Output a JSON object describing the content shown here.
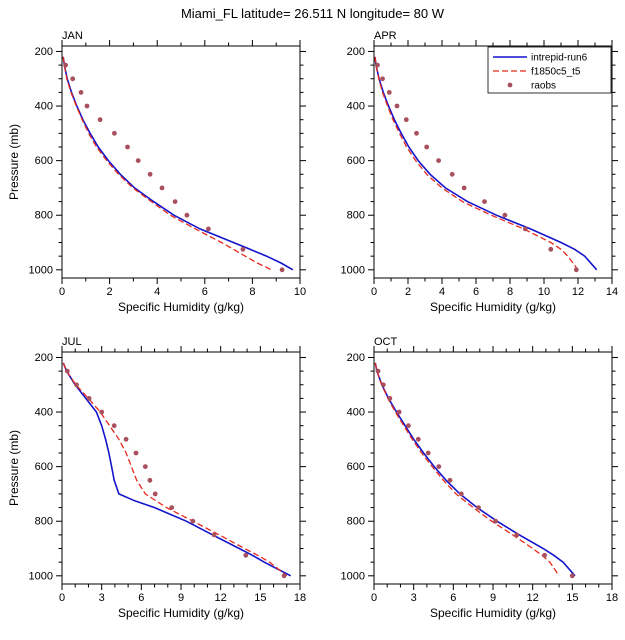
{
  "title": "Miami_FL  latitude= 26.511 N longitude= 80 W",
  "colors": {
    "run6": "#1414cc",
    "f1850": "#e8291c",
    "raobs": "#a8505e"
  },
  "axes": {
    "xlabel": "Specific Humidity (g/kg)",
    "ylabel": "Pressure (mb)",
    "yticks": [
      200,
      400,
      600,
      800,
      1000
    ],
    "ylim": [
      200,
      1000
    ],
    "y_minor_step": 50
  },
  "legend": {
    "entries": [
      {
        "label": "intrepid-run6",
        "color_key": "run6",
        "style": "solid"
      },
      {
        "label": "f1850c5_t5",
        "color_key": "f1850",
        "style": "dashed"
      },
      {
        "label": "raobs",
        "color_key": "raobs",
        "style": "dots"
      }
    ]
  },
  "chart_data": [
    {
      "type": "line",
      "title": "JAN",
      "xlim": [
        0,
        10
      ],
      "xticks": [
        0,
        2,
        4,
        6,
        8,
        10
      ],
      "x_minor_step": 1,
      "show_ylabel": true,
      "show_legend": false,
      "series": [
        {
          "name": "intrepid-run6",
          "style": "solid",
          "color_key": "run6",
          "points": [
            [
              220,
              0.05
            ],
            [
              250,
              0.1
            ],
            [
              300,
              0.22
            ],
            [
              350,
              0.4
            ],
            [
              400,
              0.62
            ],
            [
              450,
              0.88
            ],
            [
              500,
              1.18
            ],
            [
              550,
              1.52
            ],
            [
              600,
              1.95
            ],
            [
              650,
              2.45
            ],
            [
              700,
              3.05
            ],
            [
              750,
              3.85
            ],
            [
              800,
              4.7
            ],
            [
              850,
              5.8
            ],
            [
              900,
              7.2
            ],
            [
              925,
              7.9
            ],
            [
              950,
              8.6
            ],
            [
              975,
              9.2
            ],
            [
              1000,
              9.7
            ]
          ]
        },
        {
          "name": "f1850c5_t5",
          "style": "dashed",
          "color_key": "f1850",
          "points": [
            [
              220,
              0.05
            ],
            [
              250,
              0.1
            ],
            [
              300,
              0.2
            ],
            [
              350,
              0.38
            ],
            [
              400,
              0.6
            ],
            [
              450,
              0.85
            ],
            [
              500,
              1.12
            ],
            [
              550,
              1.45
            ],
            [
              600,
              1.88
            ],
            [
              650,
              2.38
            ],
            [
              700,
              2.98
            ],
            [
              750,
              3.75
            ],
            [
              800,
              4.55
            ],
            [
              850,
              5.6
            ],
            [
              900,
              6.7
            ],
            [
              925,
              7.2
            ],
            [
              950,
              7.7
            ],
            [
              975,
              8.2
            ],
            [
              1000,
              8.8
            ]
          ]
        },
        {
          "name": "raobs",
          "style": "dots",
          "color_key": "raobs",
          "points": [
            [
              250,
              0.15
            ],
            [
              300,
              0.45
            ],
            [
              350,
              0.8
            ],
            [
              400,
              1.05
            ],
            [
              450,
              1.6
            ],
            [
              500,
              2.2
            ],
            [
              550,
              2.75
            ],
            [
              600,
              3.2
            ],
            [
              650,
              3.7
            ],
            [
              700,
              4.2
            ],
            [
              750,
              4.75
            ],
            [
              800,
              5.25
            ],
            [
              850,
              6.15
            ],
            [
              925,
              7.6
            ],
            [
              1000,
              9.25
            ]
          ]
        }
      ]
    },
    {
      "type": "line",
      "title": "APR",
      "xlim": [
        0,
        14
      ],
      "xticks": [
        0,
        2,
        4,
        6,
        8,
        10,
        12,
        14
      ],
      "x_minor_step": 1,
      "show_ylabel": false,
      "show_legend": true,
      "series": [
        {
          "name": "intrepid-run6",
          "style": "solid",
          "color_key": "run6",
          "points": [
            [
              220,
              0.06
            ],
            [
              250,
              0.12
            ],
            [
              300,
              0.3
            ],
            [
              350,
              0.55
            ],
            [
              400,
              0.85
            ],
            [
              450,
              1.2
            ],
            [
              500,
              1.6
            ],
            [
              550,
              2.05
            ],
            [
              600,
              2.6
            ],
            [
              650,
              3.3
            ],
            [
              700,
              4.2
            ],
            [
              750,
              5.5
            ],
            [
              800,
              7.2
            ],
            [
              850,
              9.2
            ],
            [
              900,
              11.0
            ],
            [
              925,
              11.8
            ],
            [
              950,
              12.4
            ],
            [
              1000,
              13.1
            ]
          ]
        },
        {
          "name": "f1850c5_t5",
          "style": "dashed",
          "color_key": "f1850",
          "points": [
            [
              220,
              0.06
            ],
            [
              250,
              0.12
            ],
            [
              300,
              0.28
            ],
            [
              350,
              0.5
            ],
            [
              400,
              0.8
            ],
            [
              450,
              1.12
            ],
            [
              500,
              1.5
            ],
            [
              550,
              1.92
            ],
            [
              600,
              2.45
            ],
            [
              650,
              3.1
            ],
            [
              700,
              4.0
            ],
            [
              750,
              5.2
            ],
            [
              800,
              6.9
            ],
            [
              850,
              8.8
            ],
            [
              900,
              10.4
            ],
            [
              925,
              11.0
            ],
            [
              950,
              11.4
            ],
            [
              1000,
              12.0
            ]
          ]
        },
        {
          "name": "raobs",
          "style": "dots",
          "color_key": "raobs",
          "points": [
            [
              250,
              0.2
            ],
            [
              300,
              0.5
            ],
            [
              350,
              0.9
            ],
            [
              400,
              1.35
            ],
            [
              450,
              1.9
            ],
            [
              500,
              2.5
            ],
            [
              550,
              3.1
            ],
            [
              600,
              3.8
            ],
            [
              650,
              4.6
            ],
            [
              700,
              5.3
            ],
            [
              750,
              6.5
            ],
            [
              800,
              7.7
            ],
            [
              850,
              8.9
            ],
            [
              925,
              10.4
            ],
            [
              1000,
              11.9
            ]
          ]
        }
      ]
    },
    {
      "type": "line",
      "title": "JUL",
      "xlim": [
        0,
        18
      ],
      "xticks": [
        0,
        3,
        6,
        9,
        12,
        15,
        18
      ],
      "x_minor_step": 1,
      "show_ylabel": true,
      "show_legend": false,
      "series": [
        {
          "name": "intrepid-run6",
          "style": "solid",
          "color_key": "run6",
          "points": [
            [
              220,
              0.1
            ],
            [
              250,
              0.35
            ],
            [
              300,
              1.0
            ],
            [
              350,
              1.8
            ],
            [
              400,
              2.6
            ],
            [
              450,
              3.0
            ],
            [
              500,
              3.3
            ],
            [
              550,
              3.55
            ],
            [
              600,
              3.75
            ],
            [
              650,
              3.95
            ],
            [
              700,
              4.3
            ],
            [
              725,
              5.5
            ],
            [
              750,
              7.0
            ],
            [
              800,
              9.4
            ],
            [
              850,
              11.4
            ],
            [
              900,
              13.4
            ],
            [
              925,
              14.4
            ],
            [
              950,
              15.3
            ],
            [
              1000,
              17.3
            ]
          ]
        },
        {
          "name": "f1850c5_t5",
          "style": "dashed",
          "color_key": "f1850",
          "points": [
            [
              220,
              0.1
            ],
            [
              250,
              0.35
            ],
            [
              300,
              1.05
            ],
            [
              350,
              2.0
            ],
            [
              400,
              2.9
            ],
            [
              450,
              3.6
            ],
            [
              500,
              4.3
            ],
            [
              550,
              4.85
            ],
            [
              600,
              5.25
            ],
            [
              650,
              5.65
            ],
            [
              700,
              6.3
            ],
            [
              750,
              7.9
            ],
            [
              800,
              9.9
            ],
            [
              850,
              11.9
            ],
            [
              900,
              13.8
            ],
            [
              925,
              14.8
            ],
            [
              950,
              15.7
            ],
            [
              1000,
              17.0
            ]
          ]
        },
        {
          "name": "raobs",
          "style": "dots",
          "color_key": "raobs",
          "points": [
            [
              250,
              0.4
            ],
            [
              300,
              1.1
            ],
            [
              350,
              2.05
            ],
            [
              400,
              3.0
            ],
            [
              450,
              3.95
            ],
            [
              500,
              4.85
            ],
            [
              550,
              5.6
            ],
            [
              600,
              6.3
            ],
            [
              650,
              6.65
            ],
            [
              700,
              7.05
            ],
            [
              750,
              8.3
            ],
            [
              800,
              9.9
            ],
            [
              850,
              11.5
            ],
            [
              925,
              13.9
            ],
            [
              1000,
              16.8
            ]
          ]
        }
      ]
    },
    {
      "type": "line",
      "title": "OCT",
      "xlim": [
        0,
        18
      ],
      "xticks": [
        0,
        3,
        6,
        9,
        12,
        15,
        18
      ],
      "x_minor_step": 1,
      "show_ylabel": false,
      "show_legend": false,
      "series": [
        {
          "name": "intrepid-run6",
          "style": "solid",
          "color_key": "run6",
          "points": [
            [
              220,
              0.1
            ],
            [
              250,
              0.22
            ],
            [
              300,
              0.6
            ],
            [
              350,
              1.1
            ],
            [
              400,
              1.7
            ],
            [
              450,
              2.35
            ],
            [
              500,
              3.0
            ],
            [
              550,
              3.75
            ],
            [
              600,
              4.55
            ],
            [
              650,
              5.45
            ],
            [
              700,
              6.5
            ],
            [
              750,
              7.8
            ],
            [
              800,
              9.3
            ],
            [
              850,
              11.0
            ],
            [
              900,
              12.8
            ],
            [
              925,
              13.6
            ],
            [
              950,
              14.3
            ],
            [
              1000,
              15.2
            ]
          ]
        },
        {
          "name": "f1850c5_t5",
          "style": "dashed",
          "color_key": "f1850",
          "points": [
            [
              220,
              0.1
            ],
            [
              250,
              0.22
            ],
            [
              300,
              0.58
            ],
            [
              350,
              1.05
            ],
            [
              400,
              1.62
            ],
            [
              450,
              2.25
            ],
            [
              500,
              2.9
            ],
            [
              550,
              3.6
            ],
            [
              600,
              4.4
            ],
            [
              650,
              5.25
            ],
            [
              700,
              6.2
            ],
            [
              750,
              7.5
            ],
            [
              800,
              8.9
            ],
            [
              850,
              10.5
            ],
            [
              900,
              12.0
            ],
            [
              925,
              12.7
            ],
            [
              950,
              13.3
            ],
            [
              1000,
              14.0
            ]
          ]
        },
        {
          "name": "raobs",
          "style": "dots",
          "color_key": "raobs",
          "points": [
            [
              250,
              0.3
            ],
            [
              300,
              0.7
            ],
            [
              350,
              1.2
            ],
            [
              400,
              1.9
            ],
            [
              450,
              2.6
            ],
            [
              500,
              3.35
            ],
            [
              550,
              4.1
            ],
            [
              600,
              4.9
            ],
            [
              650,
              5.75
            ],
            [
              700,
              6.6
            ],
            [
              750,
              7.9
            ],
            [
              800,
              9.2
            ],
            [
              850,
              10.8
            ],
            [
              925,
              12.9
            ],
            [
              1000,
              15.0
            ]
          ]
        }
      ]
    }
  ]
}
